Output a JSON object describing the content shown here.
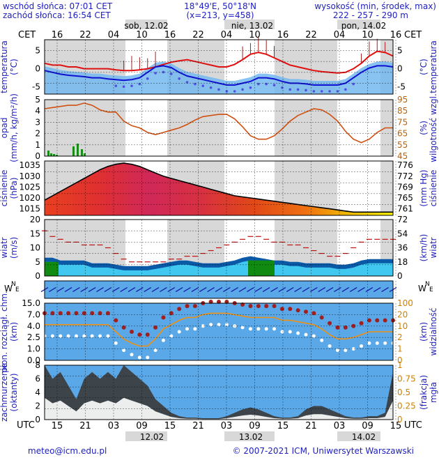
{
  "header": {
    "sunrise": "wschód słońca: 07:01 CET",
    "sunset": "zachód słońca: 16:54 CET",
    "coords": "18°49'E, 50°18'N",
    "grid": "(x=213, y=458)",
    "height_label": "wysokość (min, środek, max)",
    "height_values": "222 - 257 - 290 m"
  },
  "days_top": [
    "sob, 12.02",
    "nie, 13.02",
    "pon, 14.02"
  ],
  "days_bottom": [
    "12.02",
    "13.02",
    "14.02"
  ],
  "tz_top": "CET",
  "tz_bottom": "UTC",
  "hours_top": [
    "16",
    "22",
    "04",
    "10",
    "16",
    "22",
    "04",
    "10",
    "16",
    "22",
    "04",
    "10",
    "16"
  ],
  "hours_bottom": [
    "15",
    "21",
    "03",
    "09",
    "15",
    "21",
    "03",
    "09",
    "15",
    "21",
    "03",
    "09",
    "15"
  ],
  "footer": {
    "email": "meteo@icm.edu.pl",
    "copyright": "© 2007-2021 ICM, Uniwersytet Warszawski"
  },
  "colors": {
    "temperature": "#e01010",
    "dewpoint": "#1010d0",
    "humidity": "#d05010",
    "cloud_bg": "#5aa8e8",
    "night": "#d8d8d8"
  },
  "chart_data": [
    {
      "id": "temperature",
      "type": "line",
      "ylabel_left": "temperatura (°C)",
      "ylabel_right": "(°C)",
      "ylim": [
        -7,
        8
      ],
      "ticks": [
        "5",
        "0",
        "-5"
      ],
      "series": [
        {
          "values": [
            1.5,
            1.0,
            1.0,
            0.5,
            0.5,
            0.0,
            0.0,
            0.0,
            0.0,
            -0.3,
            -0.5,
            -0.5,
            -0.3,
            0.0,
            0.5,
            1.2,
            1.8,
            2.2,
            2.5,
            2.0,
            1.5,
            1.0,
            0.5,
            0.5,
            1.2,
            2.5,
            4.0,
            4.5,
            4.0,
            3.0,
            2.0,
            1.0,
            0.5,
            0.0,
            -0.5,
            -0.8,
            -1.0,
            -1.2,
            -1.0,
            0.0,
            1.5,
            3.5,
            4.8,
            4.5,
            3.5
          ]
        },
        {
          "values": [
            -0.5,
            -1.0,
            -1.5,
            -1.8,
            -2.0,
            -2.2,
            -2.5,
            -2.5,
            -2.8,
            -3.0,
            -3.2,
            -3.0,
            -2.5,
            -1.0,
            0.5,
            0.8,
            0.3,
            -1.0,
            -2.0,
            -2.5,
            -3.0,
            -3.5,
            -4.0,
            -4.5,
            -4.5,
            -4.0,
            -3.5,
            -2.5,
            -2.5,
            -2.8,
            -3.5,
            -4.0,
            -4.0,
            -4.2,
            -4.5,
            -4.5,
            -4.5,
            -4.5,
            -4.0,
            -2.5,
            -1.0,
            0.2,
            0.8,
            0.8,
            0.5
          ]
        }
      ]
    },
    {
      "id": "precip",
      "type": "line",
      "ylabel_left": "opad (mm/h, kg/m²/h)",
      "ylabel_right": "(%) wilgotność wzgl.",
      "ylim_left": [
        0,
        5
      ],
      "ylim_right": [
        45,
        95
      ],
      "ticks_left": [
        "5",
        "4",
        "3",
        "2",
        "1",
        "0"
      ],
      "ticks_right": [
        "95",
        "85",
        "75",
        "65",
        "55",
        "45"
      ],
      "series": [
        {
          "values": [
            87,
            88,
            89,
            90,
            90,
            92,
            90,
            86,
            84,
            84,
            76,
            72,
            70,
            66,
            64,
            66,
            68,
            70,
            73,
            77,
            80,
            81,
            82,
            82,
            78,
            71,
            63,
            60,
            60,
            63,
            69,
            76,
            81,
            84,
            87,
            86,
            82,
            76,
            67,
            60,
            57,
            60,
            66,
            70,
            70
          ]
        }
      ]
    },
    {
      "id": "pressure",
      "type": "area",
      "ylabel_left": "ciśnienie (hPa)",
      "ylabel_right": "(mm Hg) ciśnienie",
      "ylim": [
        1012,
        1037
      ],
      "ticks_left": [
        "1035",
        "1030",
        "1025",
        "1020",
        "1015"
      ],
      "ticks_right": [
        "776",
        "772",
        "769",
        "765",
        "761"
      ],
      "series": [
        {
          "values": [
            1019,
            1021,
            1023,
            1025,
            1027,
            1029,
            1031,
            1033,
            1034.5,
            1035.5,
            1036,
            1035.5,
            1034.5,
            1033,
            1031.5,
            1030,
            1029,
            1028,
            1027,
            1026,
            1025,
            1024,
            1023,
            1022,
            1021,
            1020.5,
            1020,
            1019.5,
            1019,
            1018.5,
            1018,
            1017.5,
            1017,
            1016.5,
            1016,
            1015.5,
            1015,
            1014.5,
            1014,
            1013.5,
            1013.5,
            1013.5,
            1013.5,
            1013.5,
            1013.5
          ]
        }
      ]
    },
    {
      "id": "wind",
      "type": "area",
      "ylabel_left": "wiatr (m/s)",
      "ylabel_right": "(km/h) wiatr",
      "ylim": [
        0,
        20
      ],
      "ticks_left": [
        "20",
        "15",
        "10",
        "5",
        "0"
      ],
      "ticks_right": [
        "72",
        "54",
        "36",
        "18",
        "0"
      ],
      "series": [
        {
          "values": [
            16,
            14,
            13,
            12,
            12,
            11,
            11,
            11,
            10,
            8,
            6,
            5,
            5,
            5,
            5,
            5,
            6,
            6,
            7,
            7,
            8,
            9,
            10,
            11,
            12,
            13,
            14,
            14,
            13,
            12,
            12,
            11,
            11,
            10,
            9,
            8,
            7,
            7,
            8,
            10,
            12,
            13,
            13,
            13,
            13
          ]
        },
        {
          "values": [
            5,
            5,
            4,
            4,
            4,
            4,
            3,
            3,
            3,
            2.5,
            2,
            2,
            2,
            2,
            2.5,
            3,
            3.5,
            4,
            4,
            3.5,
            3,
            3,
            3,
            3.5,
            4,
            5,
            5.5,
            5,
            4.5,
            4,
            4,
            3.5,
            3.5,
            3,
            3,
            3,
            3,
            2.5,
            2.5,
            3,
            4,
            4.5,
            4.5,
            4.5,
            4.5
          ]
        }
      ]
    },
    {
      "id": "clouds",
      "type": "scatter",
      "ylabel_left": "pion. rozciągł. chm. (km)",
      "ylabel_right": "(km) widzialność",
      "ticks_left": [
        "15.0",
        "7.0",
        "4.0",
        "2.5",
        "1.0",
        "0.0"
      ],
      "ticks_right": [
        "100",
        "20",
        "10",
        "2",
        "1",
        "0"
      ],
      "series": [
        {
          "values": [
            25,
            25,
            25,
            25,
            25,
            25,
            25,
            25,
            25,
            20,
            15,
            12,
            10,
            10,
            15,
            22,
            25,
            28,
            30,
            30,
            32,
            33,
            33,
            33,
            32,
            31,
            30,
            30,
            30,
            30,
            28,
            28,
            27,
            26,
            25,
            22,
            18,
            15,
            15,
            16,
            18,
            20,
            20,
            20,
            20
          ]
        }
      ]
    },
    {
      "id": "cloud_cover",
      "type": "area",
      "ylabel_left": "zachmurzenie (oktanty)",
      "ylabel_right": "(frakcja) mgła",
      "ylim": [
        0,
        8
      ],
      "ticks_left": [
        "8",
        "6",
        "4",
        "2",
        "0"
      ],
      "ticks_right": [
        "1",
        "0.75",
        "0.5",
        "0.25",
        "0"
      ],
      "series": [
        {
          "values": [
            8,
            6,
            7,
            5,
            3,
            6,
            7,
            6,
            7,
            6,
            8,
            7,
            6,
            5,
            3,
            2,
            1,
            0.5,
            0.3,
            0.3,
            0.2,
            0.2,
            0.2,
            0.5,
            1,
            1.5,
            1.8,
            1.5,
            1,
            0.5,
            0.3,
            0.3,
            0.5,
            1.5,
            2,
            2,
            1.5,
            1,
            0.5,
            0.3,
            0.3,
            0.5,
            0.5,
            1,
            7
          ]
        }
      ]
    }
  ]
}
